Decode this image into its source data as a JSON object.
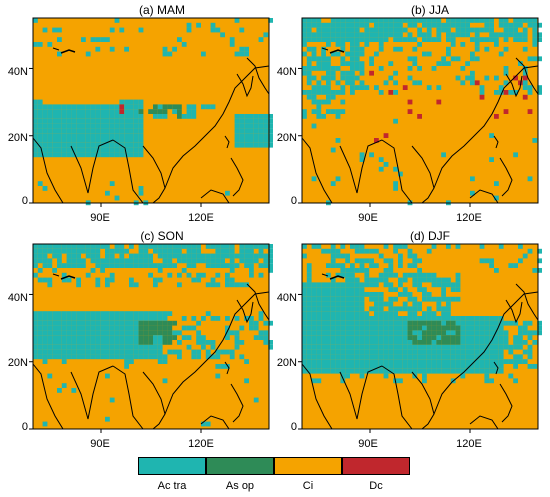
{
  "panels": [
    {
      "title": "(a) MAM",
      "key": "mam"
    },
    {
      "title": "(b) JJA",
      "key": "jja"
    },
    {
      "title": "(c) SON",
      "key": "son"
    },
    {
      "title": "(d) DJF",
      "key": "djf"
    }
  ],
  "axes": {
    "y_ticks": [
      "0",
      "20N",
      "40N"
    ],
    "x_ticks": [
      "90E",
      "120E"
    ]
  },
  "legend": {
    "items": [
      {
        "label": "Ac tra",
        "color": "#1fb5b0"
      },
      {
        "label": "As op",
        "color": "#2e8b57"
      },
      {
        "label": "Ci",
        "color": "#f5a300"
      },
      {
        "label": "Dc",
        "color": "#c0272d"
      }
    ]
  }
}
